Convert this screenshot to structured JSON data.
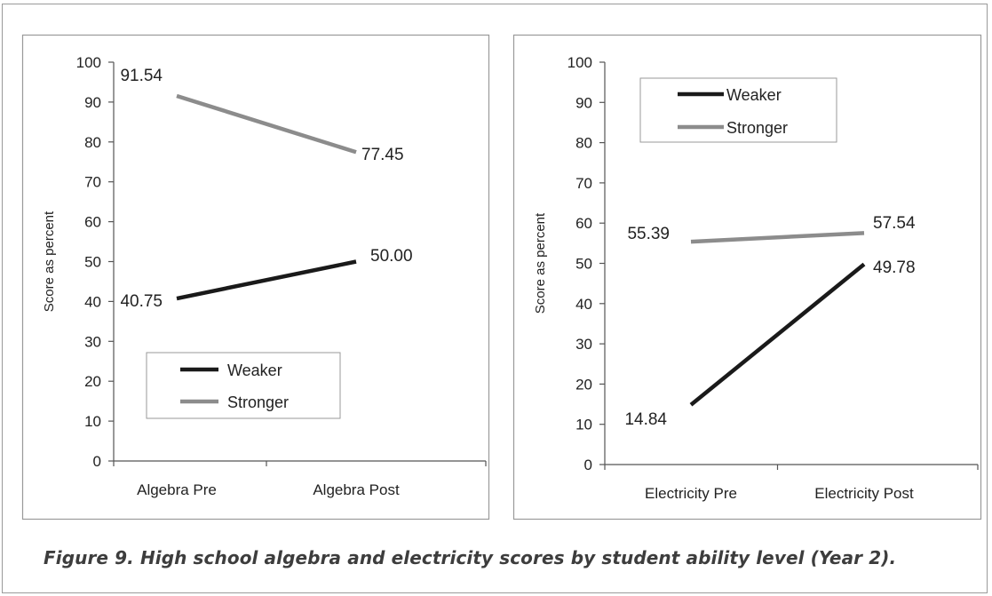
{
  "caption": "Figure 9. High school algebra and electricity scores by student ability level (Year 2).",
  "colors": {
    "weaker": "#1a1a1a",
    "stronger": "#8c8c8c",
    "axis": "#555555",
    "frame": "#9a9a9a"
  },
  "chart_data": [
    {
      "type": "line",
      "title": "",
      "xlabel": "",
      "ylabel": "Score as percent",
      "ylim": [
        0,
        100
      ],
      "yticks": [
        "0",
        "10",
        "20",
        "30",
        "40",
        "50",
        "60",
        "70",
        "80",
        "90",
        "100"
      ],
      "categories": [
        "Algebra Pre",
        "Algebra Post"
      ],
      "grid": false,
      "legend_position": "bottom-left",
      "series": [
        {
          "name": "Weaker",
          "values": [
            40.75,
            50.0
          ],
          "labels": [
            "40.75",
            "50.00"
          ]
        },
        {
          "name": "Stronger",
          "values": [
            91.54,
            77.45
          ],
          "labels": [
            "91.54",
            "77.45"
          ]
        }
      ]
    },
    {
      "type": "line",
      "title": "",
      "xlabel": "",
      "ylabel": "Score as percent",
      "ylim": [
        0,
        100
      ],
      "yticks": [
        "0",
        "10",
        "20",
        "30",
        "40",
        "50",
        "60",
        "70",
        "80",
        "90",
        "100"
      ],
      "categories": [
        "Electricity Pre",
        "Electricity Post"
      ],
      "grid": false,
      "legend_position": "top-left",
      "series": [
        {
          "name": "Weaker",
          "values": [
            14.84,
            49.78
          ],
          "labels": [
            "14.84",
            "49.78"
          ]
        },
        {
          "name": "Stronger",
          "values": [
            55.39,
            57.54
          ],
          "labels": [
            "55.39",
            "57.54"
          ]
        }
      ]
    }
  ]
}
